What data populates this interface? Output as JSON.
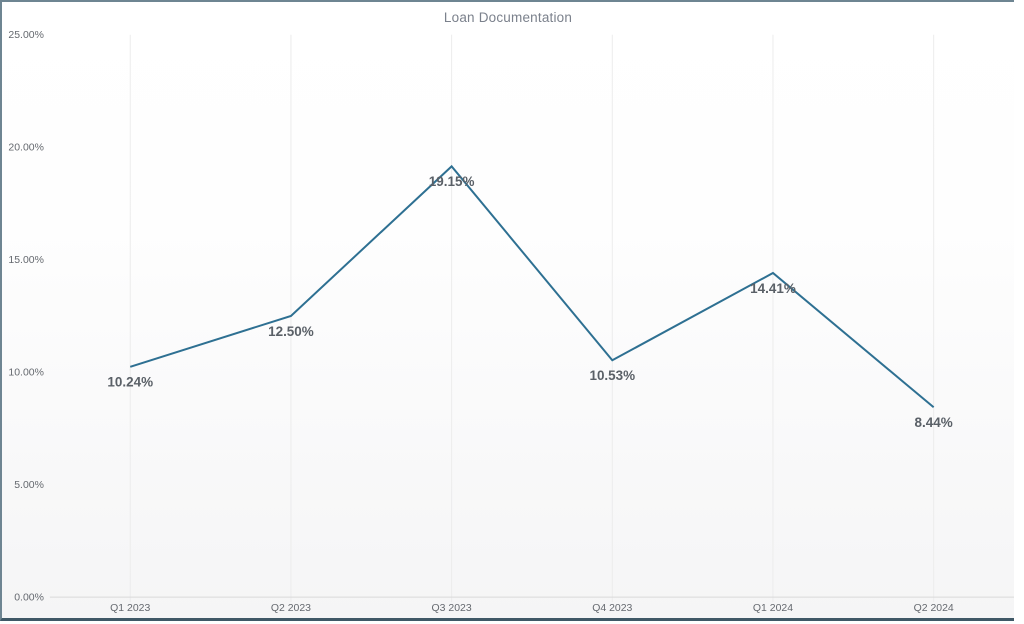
{
  "window": {
    "title": "Loan Documentation"
  },
  "colors": {
    "line": "#2e7092",
    "title": "#7b818c",
    "tick_label": "#65696f",
    "data_label": "#5a6067",
    "gridline": "#ececec",
    "axis": "#d9d9d9",
    "border_top": "#6e8592",
    "border_bottom": "#3f5866"
  },
  "chart_data": {
    "type": "line",
    "title": "Loan Documentation",
    "categories": [
      "Q1 2023",
      "Q2 2023",
      "Q3 2023",
      "Q4 2023",
      "Q1 2024",
      "Q2 2024"
    ],
    "values": [
      10.24,
      12.5,
      19.15,
      10.53,
      14.41,
      8.44
    ],
    "data_labels": [
      "10.24%",
      "12.50%",
      "19.15%",
      "10.53%",
      "14.41%",
      "8.44%"
    ],
    "xlabel": "",
    "ylabel": "",
    "ylim": [
      0,
      25
    ],
    "y_ticks": [
      0,
      5,
      10,
      15,
      20,
      25
    ],
    "y_tick_labels": [
      "0.00%",
      "5.00%",
      "10.00%",
      "15.00%",
      "20.00%",
      "25.00%"
    ],
    "grid": "vertical",
    "legend": "none",
    "line_width": 2,
    "markers": false
  }
}
